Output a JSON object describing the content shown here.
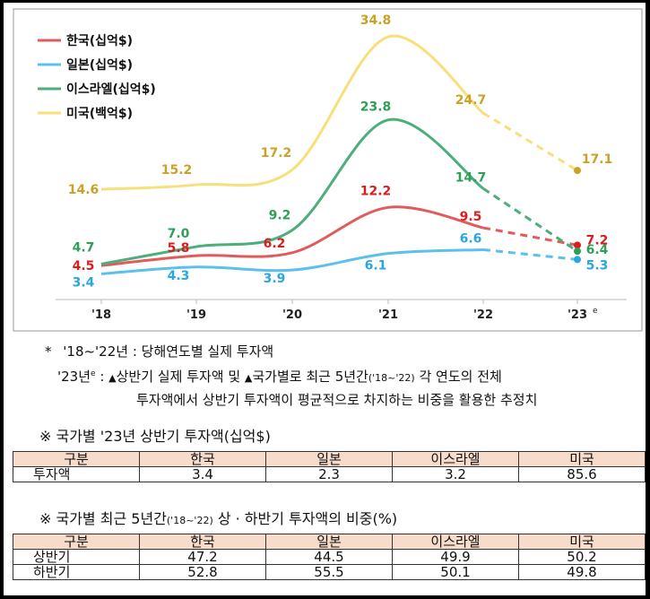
{
  "chart_data": {
    "type": "line",
    "categories": [
      "'18",
      "'19",
      "'20",
      "'21",
      "'22",
      "'23"
    ],
    "last_category_superscript": "e",
    "series": [
      {
        "name": "한국(십억$)",
        "color": "#e05b5b",
        "label_color": "#d81e1e",
        "values": [
          4.5,
          5.8,
          6.2,
          12.2,
          9.5,
          7.2
        ],
        "labels": [
          "4.5",
          "5.8",
          "6.2",
          "12.2",
          "9.5",
          "7.2"
        ]
      },
      {
        "name": "일본(십억$)",
        "color": "#5bc0eb",
        "label_color": "#2aa6e0",
        "values": [
          3.4,
          4.3,
          3.9,
          6.1,
          6.6,
          5.3
        ],
        "labels": [
          "3.4",
          "4.3",
          "3.9",
          "6.1",
          "6.6",
          "5.3"
        ]
      },
      {
        "name": "이스라엘(십억$)",
        "color": "#4cae7a",
        "label_color": "#2f9e5a",
        "values": [
          4.7,
          7.0,
          9.2,
          23.8,
          14.7,
          6.4
        ],
        "labels": [
          "4.7",
          "7.0",
          "9.2",
          "23.8",
          "14.7",
          "6.4"
        ]
      },
      {
        "name": "미국(백억$)",
        "color": "#f7e07a",
        "label_color": "#c9a227",
        "values": [
          14.6,
          15.2,
          17.2,
          34.8,
          24.7,
          17.1
        ],
        "labels": [
          "14.6",
          "15.2",
          "17.2",
          "34.8",
          "24.7",
          "17.1"
        ]
      }
    ],
    "last_segment_dashed": true,
    "legend_position": "top-left",
    "grid": false
  },
  "notes": {
    "line1_star": "*",
    "line1_years": "'18~'22년 : 당해연도별 실제 투자액",
    "line2_year": "'23년",
    "line2_sup": "e",
    "line2_colon": " : ",
    "line2_tri1": "▲",
    "line2_text1": "상반기 실제 투자액 및 ",
    "line2_tri2": "▲",
    "line2_text2": "국가별로 최근 5년간",
    "line2_small": "('18~'22)",
    "line2_text3": " 각 연도의 전체",
    "line3": "투자액에서 상반기 투자액이 평균적으로 차지하는 비중을 활용한 추정치"
  },
  "table1": {
    "title": "※ 국가별 '23년 상반기 투자액(십억$)",
    "headers": [
      "구분",
      "한국",
      "일본",
      "이스라엘",
      "미국"
    ],
    "rows": [
      [
        "투자액",
        "3.4",
        "2.3",
        "3.2",
        "85.6"
      ]
    ]
  },
  "table2": {
    "title_main": "※ 국가별 최근 5년간",
    "title_small": "('18~'22)",
    "title_rest": " 상 · 하반기 투자액의 비중(%)",
    "headers": [
      "구분",
      "한국",
      "일본",
      "이스라엘",
      "미국"
    ],
    "rows": [
      [
        "상반기",
        "47.2",
        "44.5",
        "49.9",
        "50.2"
      ],
      [
        "하반기",
        "52.8",
        "55.5",
        "50.1",
        "49.8"
      ]
    ]
  }
}
